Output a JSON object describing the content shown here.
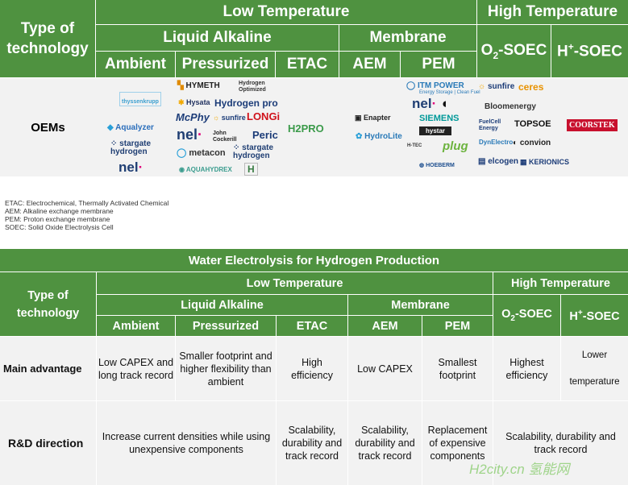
{
  "top_table": {
    "corner": "Type of technology",
    "low_temp": "Low Temperature",
    "high_temp": "High Temperature",
    "liquid_alkaline": "Liquid Alkaline",
    "membrane": "Membrane",
    "ambient": "Ambient",
    "pressurized": "Pressurized",
    "etac": "ETAC",
    "aem": "AEM",
    "pem": "PEM",
    "o2_soec": "O2-SOEC",
    "o2_sub": "2",
    "h_soec": "H+-SOEC",
    "h_sup": "+",
    "oems_label": "OEMs",
    "logos": {
      "ambient": [
        "thyssenkrupp",
        "Aqualyzer",
        "stargate hydrogen",
        "nel"
      ],
      "pressurized": [
        "HYMETH",
        "Hydrogen Optimized",
        "Hysata",
        "Hydrogen pro",
        "McPhy",
        "sunfire",
        "LONGi",
        "nel",
        "John Cockerill",
        "Peric",
        "metacon",
        "stargate hydrogen",
        "AQUAHYDREX",
        "H"
      ],
      "etac": [
        "H2PRO"
      ],
      "aem": [
        "Enapter",
        "HydroLite"
      ],
      "pem": [
        "ITM POWER",
        "Energy Storage | Clean Fuel",
        "nel",
        "SIEMENS",
        "hystar",
        "plug",
        "H-TEC",
        "HOEBERM"
      ],
      "o2_soec": [
        "sunfire",
        "ceres",
        "Bloomenergy",
        "FuelCell Energy",
        "TOPSOE",
        "DynElectro",
        "convion",
        "elcogen",
        "KERIONICS"
      ],
      "h_soec": [
        "COORSTEK"
      ]
    }
  },
  "notes": [
    "ETAC: Electrochemical, Thermally Activated Chemical",
    "AEM: Alkaline exchange membrane",
    "PEM: Proton exchange membrane",
    "SOEC: Solid Oxide Electrolysis Cell"
  ],
  "bottom_table": {
    "title": "Water Electrolysis for Hydrogen Production",
    "corner": "Type of technology",
    "low_temp": "Low Temperature",
    "high_temp": "High Temperature",
    "liquid_alkaline": "Liquid Alkaline",
    "membrane": "Membrane",
    "ambient": "Ambient",
    "pressurized": "Pressurized",
    "etac": "ETAC",
    "aem": "AEM",
    "pem": "PEM",
    "o2_soec": "O2-SOEC",
    "h_soec": "H+-SOEC",
    "rows": [
      {
        "label": "Main advantage",
        "ambient": "Low CAPEX and long track record",
        "pressurized": "Smaller footprint and higher flexibility than ambient",
        "etac": "High efficiency",
        "aem": "Low CAPEX",
        "pem": "Smallest footprint",
        "o2_soec": "Highest efficiency",
        "h_soec_a": "Lower",
        "h_soec_b": "temperature"
      },
      {
        "label": "R&D direction",
        "ambient_pressurized": "Increase current densities while using unexpensive components",
        "etac": "Scalability, durability and track record",
        "aem": "Scalability, durability and track record",
        "pem": "Replacement of expensive components",
        "soec": "Scalability, durability and track record"
      }
    ]
  },
  "watermark": "H2city.cn 氢能网"
}
